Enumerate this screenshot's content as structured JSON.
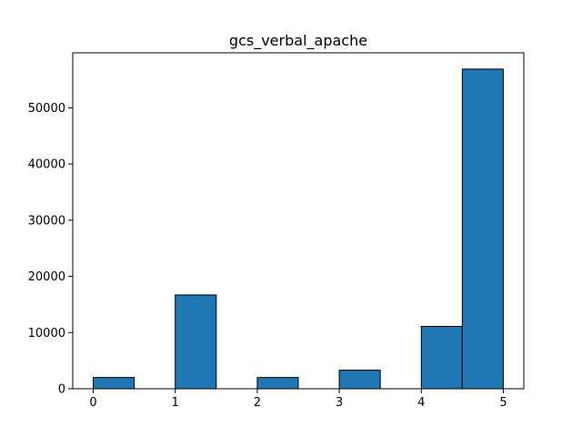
{
  "chart_data": {
    "type": "bar",
    "title": "gcs_verbal_apache",
    "xlabel": "",
    "ylabel": "",
    "xlim": [
      -0.25,
      5.25
    ],
    "ylim": [
      0,
      59800
    ],
    "x_ticks": [
      0,
      1,
      2,
      3,
      4,
      5
    ],
    "y_ticks": [
      0,
      10000,
      20000,
      30000,
      40000,
      50000
    ],
    "grid": false,
    "bar_color": "#1f77b4",
    "edge_color": "#000000",
    "bins": [
      {
        "x0": 0.0,
        "x1": 0.5,
        "value": 2000
      },
      {
        "x0": 0.5,
        "x1": 1.0,
        "value": 0
      },
      {
        "x0": 1.0,
        "x1": 1.5,
        "value": 16700
      },
      {
        "x0": 1.5,
        "x1": 2.0,
        "value": 0
      },
      {
        "x0": 2.0,
        "x1": 2.5,
        "value": 2000
      },
      {
        "x0": 2.5,
        "x1": 3.0,
        "value": 0
      },
      {
        "x0": 3.0,
        "x1": 3.5,
        "value": 3300
      },
      {
        "x0": 3.5,
        "x1": 4.0,
        "value": 0
      },
      {
        "x0": 4.0,
        "x1": 4.5,
        "value": 11100
      },
      {
        "x0": 4.5,
        "x1": 5.0,
        "value": 56900
      }
    ]
  }
}
